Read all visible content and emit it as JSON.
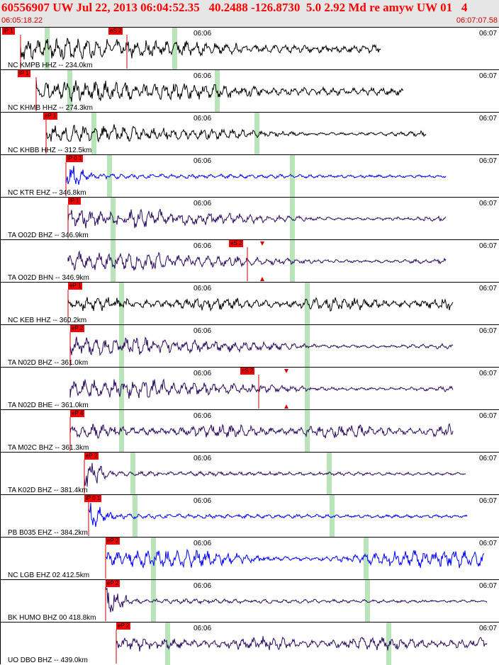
{
  "header": {
    "title": "60556907 UW Jul 22, 2013 06:04:52.35   40.2488 -126.8730  5.0 2.92 Md re amyw UW 01   4",
    "time_start": "06:05:18.22",
    "time_end": "06:07:07.58"
  },
  "ticks": {
    "t1": "06:06",
    "t2": "06:07"
  },
  "traces": [
    {
      "label": "NC KMPB HHZ -- 234.0km",
      "color": "#000000",
      "pick": "iP 1",
      "pick2": "eS 2",
      "amp": "high"
    },
    {
      "label": "NC KHMB HHZ -- 274.3km",
      "color": "#000000",
      "pick": "iP 1",
      "amp": "high"
    },
    {
      "label": "NC KHBB HHZ -- 312.5km",
      "color": "#000000",
      "pick": "eP 1",
      "amp": "med"
    },
    {
      "label": "NC KTR EHZ -- 346.8km",
      "color": "#0000ff",
      "pick": "iP 0 1",
      "amp": "spike"
    },
    {
      "label": "TA O02D BHZ -- 346.9km",
      "color": "#2a0a5e",
      "pick": "iP 1",
      "amp": "med"
    },
    {
      "label": "TA O02D BHN -- 346.9km",
      "color": "#2a0a5e",
      "pick2": "eS 2",
      "amp": "med"
    },
    {
      "label": "NC KEB HHZ -- 360.2km",
      "color": "#000000",
      "pick": "eP 1",
      "amp": "wave"
    },
    {
      "label": "TA N02D BHZ -- 361.0km",
      "color": "#2a0a5e",
      "pick": "eP 2",
      "amp": "med"
    },
    {
      "label": "TA N02D BHE -- 361.0km",
      "color": "#2a0a5e",
      "pick2": "eS 2",
      "amp": "med"
    },
    {
      "label": "TA M02C BHZ -- 361.3km",
      "color": "#2a0a5e",
      "pick": "eP 4",
      "amp": "wave"
    },
    {
      "label": "TA K02D BHZ -- 381.4km",
      "color": "#2a0a5e",
      "pick": "eP 2",
      "amp": "spike"
    },
    {
      "label": "PB B035 EHZ -- 384.2km",
      "color": "#0000ff",
      "pick": "iP 0 1",
      "amp": "spike"
    },
    {
      "label": "NC LGB EHZ 02 412.5km",
      "color": "#0000ff",
      "pick": "eP 2",
      "amp": "noisy"
    },
    {
      "label": "BK HUMO BHZ 00 418.8km",
      "color": "#2a0a5e",
      "pick": "eP 2",
      "amp": "spike"
    },
    {
      "label": "UO DBO BHZ -- 439.0km",
      "color": "#2a0a5e",
      "pick": "eP 2",
      "amp": "wave"
    }
  ]
}
